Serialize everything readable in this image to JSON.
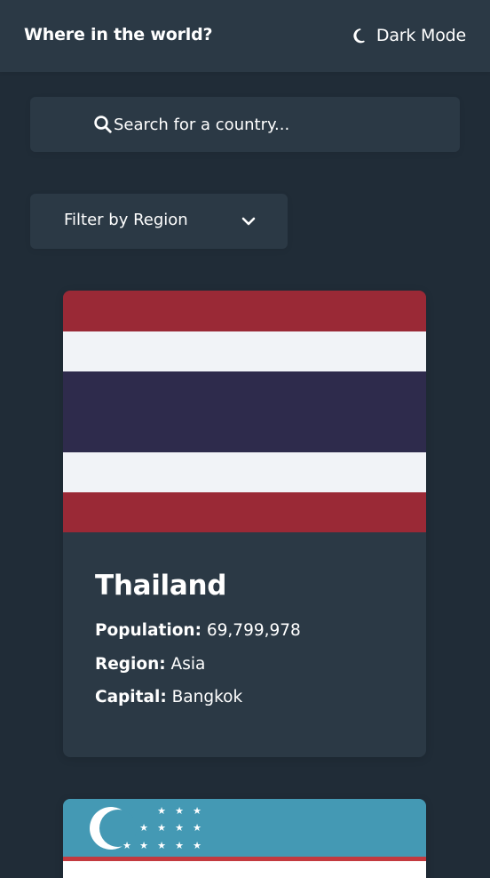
{
  "header": {
    "title": "Where in the world?",
    "mode_label": "Dark Mode",
    "mode_icon": "moon-icon"
  },
  "search": {
    "placeholder": "Search for a country...",
    "icon": "search-icon"
  },
  "filter": {
    "label": "Filter by Region",
    "icon": "chevron-down-icon"
  },
  "countries": [
    {
      "name": "Thailand",
      "population_label": "Population:",
      "population": "69,799,978",
      "region_label": "Region:",
      "region": "Asia",
      "capital_label": "Capital:",
      "capital": "Bangkok",
      "flag_colors": [
        "#9a2936",
        "#f1f3f7",
        "#2e2b4c",
        "#f1f3f7",
        "#9a2936"
      ]
    },
    {
      "flag_colors": [
        "#4499b4",
        "#c33a3f",
        "#ffffff"
      ]
    }
  ],
  "colors": {
    "background": "#202c37",
    "element": "#2b3945",
    "text": "#ffffff"
  }
}
